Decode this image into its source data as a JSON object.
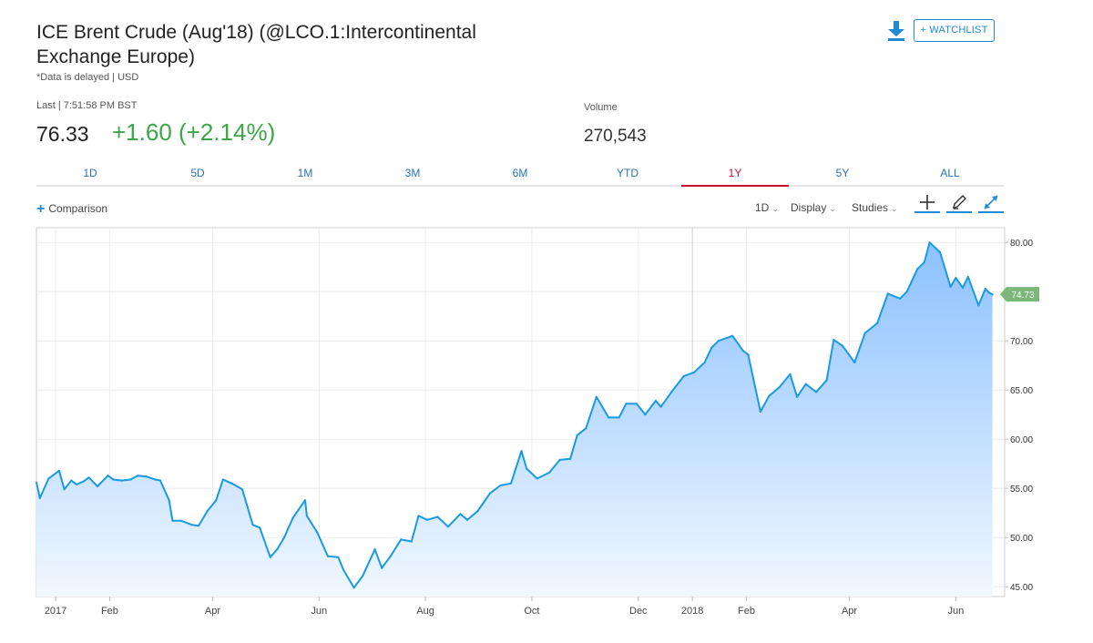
{
  "header": {
    "title": "ICE Brent Crude (Aug'18) (@LCO.1:Intercontinental Exchange Europe)",
    "note": "*Data is delayed | USD",
    "watchlist_label": "+ WATCHLIST"
  },
  "quote": {
    "last_label": "Last | 7:51:58 PM BST",
    "last_value": "76.33",
    "change": "+1.60 (+2.14%)",
    "volume_label": "Volume",
    "volume_value": "270,543"
  },
  "tabs": [
    {
      "label": "1D",
      "active": false
    },
    {
      "label": "5D",
      "active": false
    },
    {
      "label": "1M",
      "active": false
    },
    {
      "label": "3M",
      "active": false
    },
    {
      "label": "6M",
      "active": false
    },
    {
      "label": "YTD",
      "active": false
    },
    {
      "label": "1Y",
      "active": true
    },
    {
      "label": "5Y",
      "active": false
    },
    {
      "label": "ALL",
      "active": false
    }
  ],
  "toolbar": {
    "comparison_label": "Comparison",
    "interval_label": "1D",
    "display_label": "Display",
    "studies_label": "Studies"
  },
  "colors": {
    "line": "#1a9be0",
    "fill_top": "#8cc1ff",
    "fill_bottom": "#f1f8ff",
    "positive": "#39a845",
    "active_tab": "#c8102e",
    "link": "#2a72b5",
    "last_price_tag": "#7ab877"
  },
  "icons": [
    "download-icon",
    "plus-icon",
    "crosshair-icon",
    "pencil-icon",
    "expand-icon"
  ],
  "chart_data": {
    "type": "area",
    "title": "",
    "xlabel": "",
    "ylabel": "",
    "ylim": [
      44,
      81.5
    ],
    "y_ticks": [
      "80.00",
      "75.00",
      "70.00",
      "65.00",
      "60.00",
      "55.00",
      "50.00",
      "45.00"
    ],
    "y_tick_values": [
      80,
      75,
      70,
      65,
      60,
      55,
      50,
      45
    ],
    "x_ticks": [
      "2017",
      "Feb",
      "Apr",
      "Jun",
      "Aug",
      "Oct",
      "Dec",
      "2018",
      "Feb",
      "Apr",
      "Jun"
    ],
    "x_tick_dates": [
      "2017-01-01",
      "2017-02-01",
      "2017-04-01",
      "2017-06-01",
      "2017-08-01",
      "2017-10-01",
      "2017-12-01",
      "2018-01-01",
      "2018-02-01",
      "2018-04-01",
      "2018-06-01"
    ],
    "x_range": [
      "2016-12-21",
      "2018-06-29"
    ],
    "grid": true,
    "last_price_label": "74.73",
    "last_price_value": 74.73,
    "series": [
      {
        "x": [
          "2016-12-21",
          "2016-12-23",
          "2016-12-28",
          "2017-01-03",
          "2017-01-06",
          "2017-01-10",
          "2017-01-13",
          "2017-01-17",
          "2017-01-20",
          "2017-01-25",
          "2017-01-31",
          "2017-02-03",
          "2017-02-08",
          "2017-02-13",
          "2017-02-17",
          "2017-02-22",
          "2017-02-27",
          "2017-03-02",
          "2017-03-07",
          "2017-03-09",
          "2017-03-14",
          "2017-03-20",
          "2017-03-24",
          "2017-03-29",
          "2017-04-03",
          "2017-04-07",
          "2017-04-12",
          "2017-04-18",
          "2017-04-24",
          "2017-04-28",
          "2017-05-04",
          "2017-05-08",
          "2017-05-12",
          "2017-05-17",
          "2017-05-24",
          "2017-05-25",
          "2017-05-31",
          "2017-06-06",
          "2017-06-12",
          "2017-06-15",
          "2017-06-21",
          "2017-06-26",
          "2017-07-03",
          "2017-07-07",
          "2017-07-12",
          "2017-07-18",
          "2017-07-24",
          "2017-07-28",
          "2017-08-02",
          "2017-08-08",
          "2017-08-14",
          "2017-08-21",
          "2017-08-25",
          "2017-08-31",
          "2017-09-07",
          "2017-09-13",
          "2017-09-19",
          "2017-09-25",
          "2017-09-28",
          "2017-10-04",
          "2017-10-11",
          "2017-10-17",
          "2017-10-23",
          "2017-10-27",
          "2017-11-01",
          "2017-11-07",
          "2017-11-14",
          "2017-11-20",
          "2017-11-24",
          "2017-11-30",
          "2017-12-05",
          "2017-12-11",
          "2017-12-14",
          "2017-12-20",
          "2017-12-27",
          "2018-01-02",
          "2018-01-08",
          "2018-01-12",
          "2018-01-16",
          "2018-01-24",
          "2018-01-30",
          "2018-02-02",
          "2018-02-09",
          "2018-02-14",
          "2018-02-20",
          "2018-02-26",
          "2018-03-02",
          "2018-03-07",
          "2018-03-13",
          "2018-03-19",
          "2018-03-23",
          "2018-03-28",
          "2018-04-04",
          "2018-04-10",
          "2018-04-17",
          "2018-04-23",
          "2018-04-30",
          "2018-05-04",
          "2018-05-10",
          "2018-05-14",
          "2018-05-17",
          "2018-05-23",
          "2018-05-29",
          "2018-06-01",
          "2018-06-05",
          "2018-06-08",
          "2018-06-14",
          "2018-06-18",
          "2018-06-20",
          "2018-06-22"
        ],
        "values": [
          55.6,
          54.0,
          56.0,
          56.8,
          54.9,
          55.8,
          55.4,
          55.7,
          56.1,
          55.2,
          56.3,
          55.9,
          55.8,
          55.9,
          56.3,
          56.2,
          55.9,
          55.8,
          53.8,
          51.7,
          51.7,
          51.3,
          51.2,
          52.7,
          53.8,
          55.9,
          55.5,
          54.9,
          51.3,
          51.0,
          48.0,
          48.8,
          50.0,
          52.0,
          53.8,
          52.2,
          50.5,
          48.1,
          48.0,
          46.7,
          44.9,
          46.1,
          48.8,
          46.9,
          48.1,
          49.8,
          49.6,
          52.2,
          51.8,
          52.1,
          51.1,
          52.4,
          51.8,
          52.7,
          54.5,
          55.3,
          55.5,
          58.8,
          57.0,
          56.0,
          56.6,
          57.9,
          58.0,
          60.4,
          61.1,
          64.3,
          62.2,
          62.2,
          63.6,
          63.6,
          62.5,
          63.9,
          63.3,
          64.8,
          66.4,
          66.8,
          67.8,
          69.3,
          70.0,
          70.5,
          69.0,
          68.6,
          62.8,
          64.4,
          65.3,
          66.6,
          64.3,
          65.6,
          64.8,
          66.0,
          70.1,
          69.5,
          67.8,
          70.8,
          71.8,
          74.8,
          74.3,
          75.0,
          77.3,
          78.0,
          80.0,
          79.0,
          75.5,
          76.4,
          75.4,
          76.5,
          73.6,
          75.3,
          74.9,
          74.7
        ]
      }
    ]
  }
}
